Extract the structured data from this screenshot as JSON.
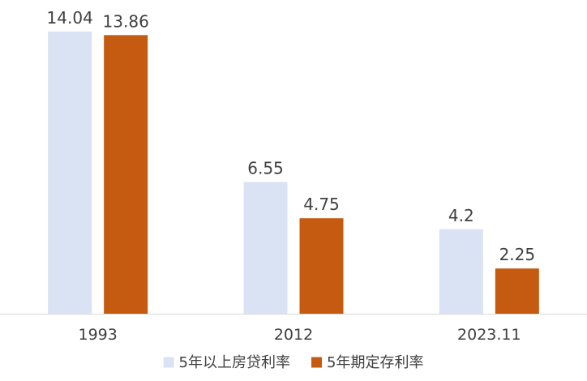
{
  "chart_data": {
    "type": "bar",
    "categories": [
      "1993",
      "2012",
      "2023.11"
    ],
    "series": [
      {
        "name": "5年以上房贷利率",
        "values": [
          14.04,
          6.55,
          4.2
        ],
        "value_labels": [
          "14.04",
          "6.55",
          "4.2"
        ],
        "color": "#dae3f3"
      },
      {
        "name": "5年期定存利率",
        "values": [
          13.86,
          4.75,
          2.25
        ],
        "value_labels": [
          "13.86",
          "4.75",
          "2.25"
        ],
        "color": "#c55a11"
      }
    ],
    "ylim": [
      0,
      14.8
    ],
    "grid": false,
    "legend_position": "bottom-center",
    "text_color": "#404040",
    "axis_color": "#d9d9d9"
  }
}
